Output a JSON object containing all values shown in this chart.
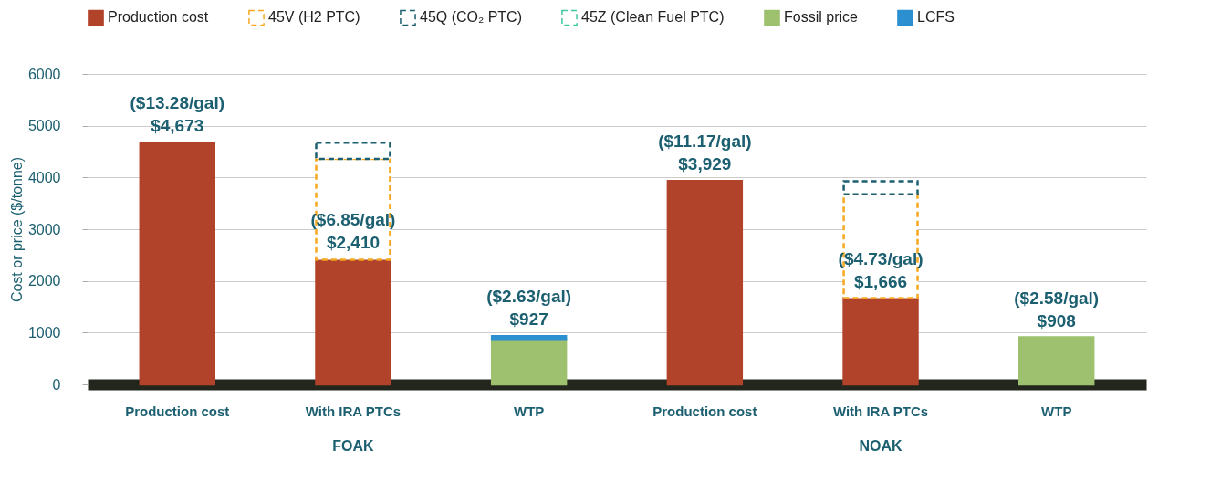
{
  "chart_data": {
    "type": "bar",
    "stacked": true,
    "categories": [
      "Production cost",
      "With IRA PTCs",
      "WTP",
      "Production cost",
      "With IRA PTCs",
      "WTP"
    ],
    "ylabel": "Cost or price ($/tonne)",
    "series": [
      {
        "name": "Production cost",
        "color": "#b1432a",
        "values": [
          4673,
          2410,
          null,
          3929,
          1666,
          null
        ],
        "value_labels": [
          "($13.28/gal)\n$4,673",
          "($6.85/gal)\n$2,410",
          null,
          "($11.17/gal)\n$3,929",
          "($4.73/gal)\n$1,666",
          null
        ]
      },
      {
        "name": "45V (H2 PTC)",
        "color": "#f6a821",
        "line_style": "dashed",
        "values": [
          null,
          1950,
          null,
          null,
          2010,
          null
        ]
      },
      {
        "name": "45Q (CO₂ PTC)",
        "color": "#1b5f70",
        "line_style": "dashed",
        "values": [
          null,
          310,
          null,
          null,
          250,
          null
        ]
      },
      {
        "name": "45Z (Clean Fuel PTC)",
        "color": "#3cc6a3",
        "line_style": "dashed",
        "values": [
          null,
          null,
          null,
          null,
          null,
          null
        ]
      },
      {
        "name": "Fossil price",
        "color": "#9dc16e",
        "values": [
          null,
          null,
          880,
          null,
          null,
          908
        ]
      },
      {
        "name": "LCFS",
        "color": "#2b8fd0",
        "values": [
          null,
          null,
          50,
          null,
          null,
          null
        ]
      }
    ],
    "totals": [
      null,
      null,
      "($2.63/gal)\n$927",
      null,
      null,
      "($2.58/gal)\n$908"
    ],
    "annotations": [
      "FOAK",
      "NOAK"
    ],
    "ylim": [
      0,
      6000
    ],
    "yticks": [
      0,
      1000,
      2000,
      3000,
      4000,
      5000,
      6000
    ],
    "grid": "y",
    "legend": "top"
  }
}
